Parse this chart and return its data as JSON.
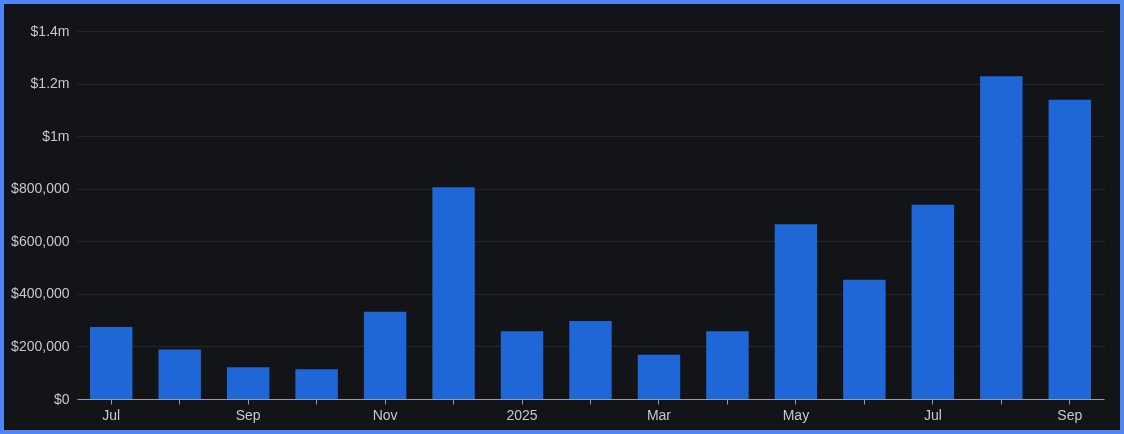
{
  "chart_data": {
    "type": "bar",
    "categories": [
      "Jul",
      null,
      "Sep",
      null,
      "Nov",
      null,
      "2025",
      null,
      "Mar",
      null,
      "May",
      null,
      "Jul",
      null,
      "Sep"
    ],
    "values": [
      274000,
      188000,
      121000,
      113000,
      332000,
      806000,
      258000,
      297000,
      168000,
      258000,
      665000,
      454000,
      739000,
      1228000,
      1138000
    ],
    "color": "#1f66d6",
    "ylim": [
      0,
      1400000
    ],
    "yticks": [
      {
        "value": 0,
        "label": "$0"
      },
      {
        "value": 200000,
        "label": "$200,000"
      },
      {
        "value": 400000,
        "label": "$400,000"
      },
      {
        "value": 600000,
        "label": "$600,000"
      },
      {
        "value": 800000,
        "label": "$800,000"
      },
      {
        "value": 1000000,
        "label": "$1m"
      },
      {
        "value": 1200000,
        "label": "$1.2m"
      },
      {
        "value": 1400000,
        "label": "$1.4m"
      }
    ],
    "grid": "y"
  }
}
